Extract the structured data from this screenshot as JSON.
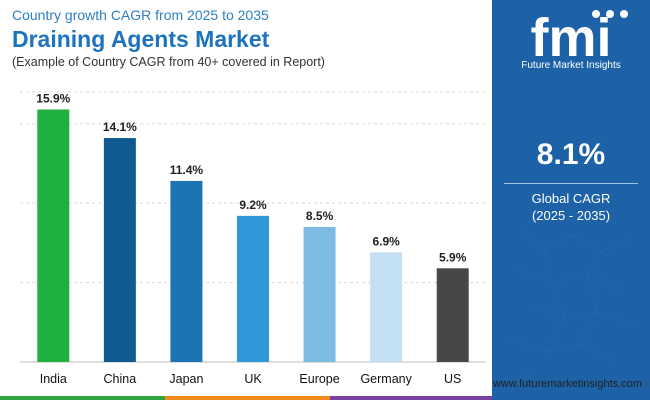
{
  "header": {
    "subtitle": "Country growth CAGR from 2025 to 2035",
    "title": "Draining Agents Market",
    "note": "(Example of Country CAGR from 40+ covered in Report)"
  },
  "chart_data": {
    "type": "bar",
    "categories": [
      "India",
      "China",
      "Japan",
      "UK",
      "Europe",
      "Germany",
      "US"
    ],
    "values": [
      15.9,
      14.1,
      11.4,
      9.2,
      8.5,
      6.9,
      5.9
    ],
    "value_labels": [
      "15.9%",
      "14.1%",
      "11.4%",
      "9.2%",
      "8.5%",
      "6.9%",
      "5.9%"
    ],
    "colors": [
      "#1fb040",
      "#0f5b91",
      "#1c74b4",
      "#3097d9",
      "#7dbbe3",
      "#c3e0f4",
      "#474747"
    ],
    "ylim": [
      0,
      17
    ],
    "grid": true,
    "title": "",
    "xlabel": "",
    "ylabel": ""
  },
  "panel": {
    "logo_word": "fmi",
    "logo_name": "Future Market Insights",
    "cagr_value": "8.1%",
    "cagr_label": "Global CAGR",
    "cagr_period": "(2025 - 2035)"
  },
  "footer": {
    "website": "www.futuremarketinsights.com",
    "colors": [
      "#2ea640",
      "#f08a1c",
      "#7a3fa0"
    ]
  }
}
